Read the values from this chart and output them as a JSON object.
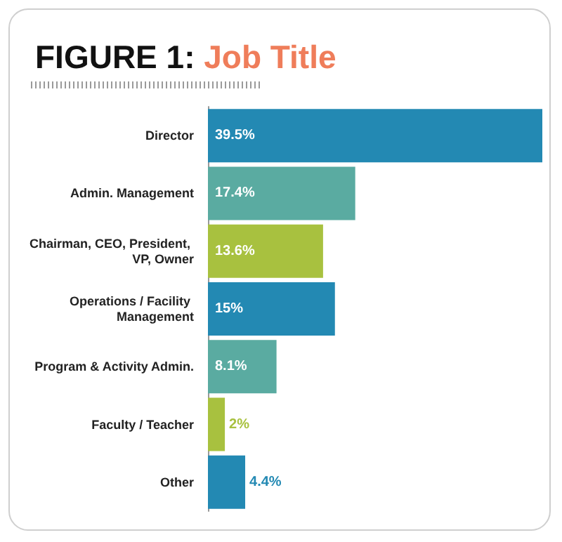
{
  "chart_data": {
    "type": "bar",
    "orientation": "horizontal",
    "title": "FIGURE 1: Job Title",
    "categories": [
      "Director",
      "Admin. Management",
      "Chairman, CEO, President, VP, Owner",
      "Operations / Facility Management",
      "Program & Activity Admin.",
      "Faculty / Teacher",
      "Other"
    ],
    "values": [
      39.5,
      17.4,
      13.6,
      15,
      8.1,
      2,
      4.4
    ],
    "value_labels": [
      "39.5%",
      "17.4%",
      "13.6%",
      "15%",
      "8.1%",
      "2%",
      "4.4%"
    ],
    "colors": [
      "#2389b3",
      "#5aaba1",
      "#a8c13f",
      "#2389b3",
      "#5aaba1",
      "#a8c13f",
      "#2389b3"
    ],
    "grid": false
  }
}
